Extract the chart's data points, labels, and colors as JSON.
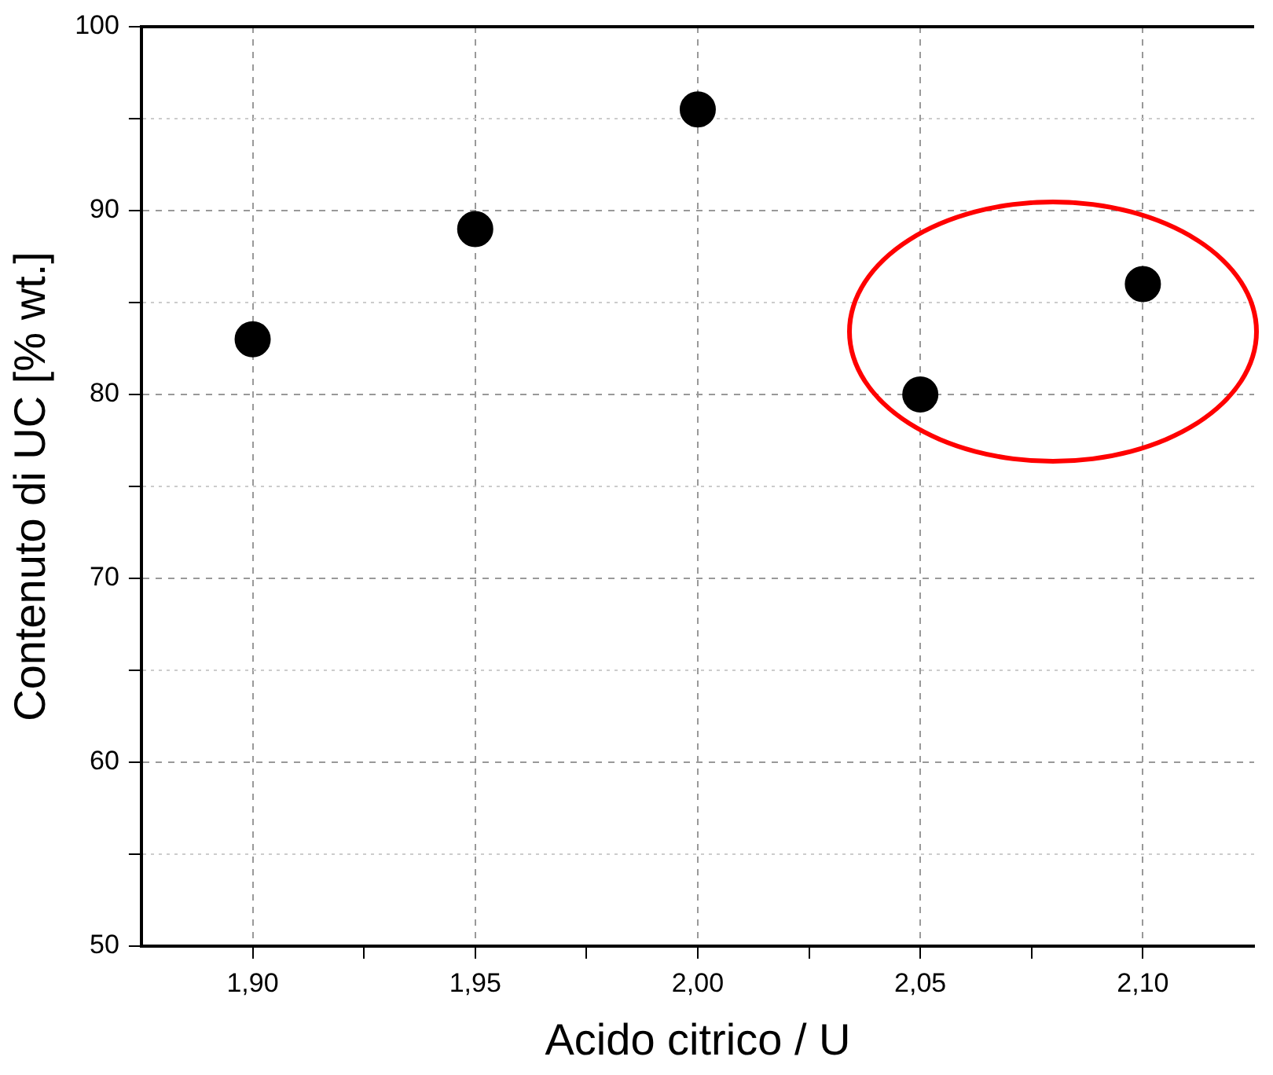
{
  "chart_data": {
    "type": "scatter",
    "xlabel": "Acido citrico / U",
    "ylabel": "Contenuto di UC [% wt.]",
    "x": [
      1.9,
      1.95,
      2.0,
      2.05,
      2.1
    ],
    "series": [
      {
        "color": "#000000",
        "values": [
          83,
          89,
          95.5,
          80,
          86
        ]
      }
    ],
    "xlim": [
      1.875,
      2.125
    ],
    "xticks": [
      {
        "value": 1.9,
        "label": "1,90"
      },
      {
        "value": 1.925,
        "label": null
      },
      {
        "value": 1.95,
        "label": "1,95"
      },
      {
        "value": 1.975,
        "label": null
      },
      {
        "value": 2.0,
        "label": "2,00"
      },
      {
        "value": 2.025,
        "label": null
      },
      {
        "value": 2.05,
        "label": "2,05"
      },
      {
        "value": 2.075,
        "label": null
      },
      {
        "value": 2.1,
        "label": "2,10"
      }
    ],
    "ylim": [
      50,
      100
    ],
    "yticks": [
      50,
      {
        "value": 55,
        "label": null
      },
      60,
      {
        "value": 65,
        "label": null
      },
      70,
      {
        "value": 75,
        "label": null
      },
      80,
      {
        "value": 85,
        "label": null
      },
      90,
      {
        "value": 95,
        "label": null
      },
      100
    ],
    "grid": true,
    "legend": false,
    "marker": "circle"
  }
}
